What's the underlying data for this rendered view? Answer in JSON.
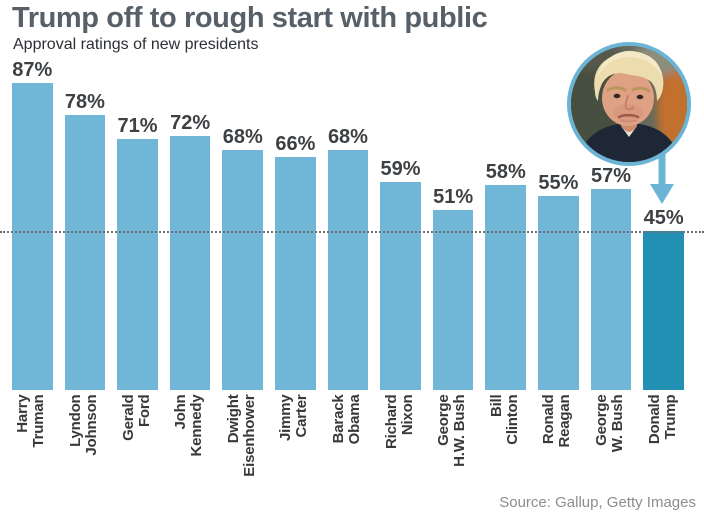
{
  "header": {
    "title": "Trump off to rough start with public",
    "subtitle": "Approval ratings of new presidents"
  },
  "chart_data": {
    "type": "bar",
    "title": "Trump off to rough start with public",
    "subtitle": "Approval ratings of new presidents",
    "categories": [
      "Harry Truman",
      "Lyndon Johnson",
      "Gerald Ford",
      "John Kennedy",
      "Dwight Eisenhower",
      "Jimmy Carter",
      "Barack Obama",
      "Richard Nixon",
      "George H.W. Bush",
      "Bill Clinton",
      "Ronald Reagan",
      "George W. Bush",
      "Donald Trump"
    ],
    "category_lines": [
      [
        "Harry",
        "Truman"
      ],
      [
        "Lyndon",
        "Johnson"
      ],
      [
        "Gerald",
        "Ford"
      ],
      [
        "John",
        "Kennedy"
      ],
      [
        "Dwight",
        "Eisenhower"
      ],
      [
        "Jimmy",
        "Carter"
      ],
      [
        "Barack",
        "Obama"
      ],
      [
        "Richard",
        "Nixon"
      ],
      [
        "George",
        "H.W. Bush"
      ],
      [
        "Bill",
        "Clinton"
      ],
      [
        "Ronald",
        "Reagan"
      ],
      [
        "George",
        "W. Bush"
      ],
      [
        "Donald",
        "Trump"
      ]
    ],
    "values": [
      87,
      78,
      71,
      72,
      68,
      66,
      68,
      59,
      51,
      58,
      55,
      57,
      45
    ],
    "value_suffix": "%",
    "highlight_index": 12,
    "reference_line_value": 45,
    "ylim": [
      0,
      93
    ],
    "grid": false,
    "legend": false,
    "annotation": "Photo of Donald Trump in circle with arrow pointing to his 45% bar"
  },
  "source": {
    "text": "Source: Gallup, Getty Images"
  },
  "colors": {
    "bar": "#6fb6d7",
    "bar_highlight": "#2190b3",
    "accent_blue": "#6cb4d6",
    "title_text": "#575f68",
    "subtitle_text": "#2c3034",
    "value_text": "#3e4144",
    "name_text": "#37393c",
    "source_text": "#8a8e92",
    "reference_line": "#6b7075"
  }
}
